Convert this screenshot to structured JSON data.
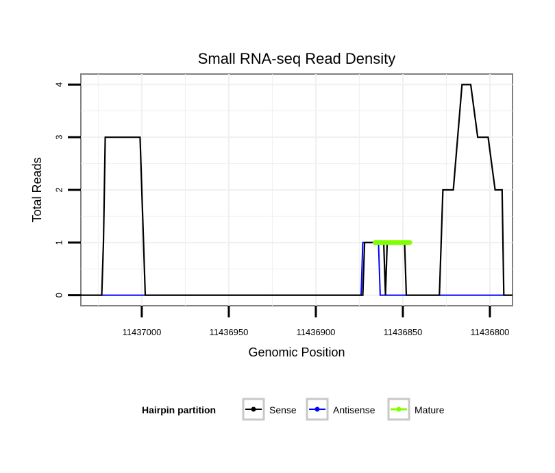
{
  "chart_data": {
    "type": "line",
    "title": "Small RNA-seq Read Density",
    "xlabel": "Genomic Position",
    "ylabel": "Total Reads",
    "x_reversed": true,
    "xlim": [
      11437035,
      11436787
    ],
    "ylim": [
      -0.2,
      4.2
    ],
    "xticks": [
      11437000,
      11436950,
      11436900,
      11436850,
      11436800
    ],
    "xtick_labels": [
      "11437000",
      "11436950",
      "11436900",
      "11436850",
      "11436800"
    ],
    "yticks": [
      0,
      1,
      2,
      3,
      4
    ],
    "ytick_labels": [
      "0",
      "1",
      "2",
      "3",
      "4"
    ],
    "grid": true,
    "legend": {
      "title": "Hairpin partition",
      "position": "bottom",
      "entries": [
        "Sense",
        "Antisense",
        "Mature"
      ]
    },
    "series": [
      {
        "name": "Sense",
        "color": "#000000",
        "x": [
          11437035,
          11437023,
          11437022,
          11437021,
          11437001,
          11436999,
          11436998,
          11436932,
          11436926,
          11436922,
          11436920,
          11436874,
          11436873,
          11436872,
          11436861,
          11436860,
          11436859,
          11436849,
          11436848,
          11436847,
          11436829,
          11436827,
          11436821,
          11436816,
          11436811,
          11436807,
          11436801,
          11436797,
          11436793,
          11436792,
          11436791,
          11436787
        ],
        "y": [
          0,
          0,
          1,
          3,
          3,
          1,
          0,
          0,
          0,
          0,
          0,
          0,
          0,
          1,
          1,
          0,
          1,
          1,
          0,
          0,
          0,
          2,
          2,
          4,
          4,
          3,
          3,
          2,
          2,
          0,
          0,
          0
        ]
      },
      {
        "name": "Antisense",
        "color": "#0000ff",
        "x": [
          11437023,
          11436874,
          11436873,
          11436864,
          11436863,
          11436787
        ],
        "y": [
          0,
          0,
          1,
          1,
          0,
          0
        ]
      },
      {
        "name": "Mature",
        "color": "#7fff00",
        "x": [
          11436866,
          11436846
        ],
        "y": [
          1,
          1
        ]
      }
    ]
  }
}
